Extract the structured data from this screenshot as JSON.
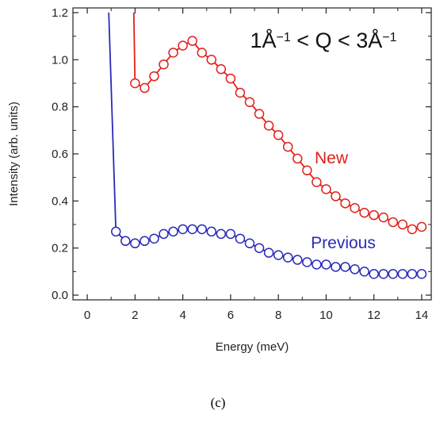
{
  "chart_data": {
    "type": "line",
    "xlabel": "Energy (meV)",
    "ylabel": "Intensity (arb. units)",
    "xlim": [
      -0.6,
      14.4
    ],
    "ylim": [
      -0.02,
      1.22
    ],
    "xticks": [
      0,
      2,
      4,
      6,
      8,
      10,
      12,
      14
    ],
    "yticks": [
      0.0,
      0.2,
      0.4,
      0.6,
      0.8,
      1.0,
      1.2
    ],
    "xtick_labels": [
      "0",
      "2",
      "4",
      "6",
      "8",
      "10",
      "12",
      "14"
    ],
    "ytick_labels": [
      "0.0",
      "0.2",
      "0.4",
      "0.6",
      "0.8",
      "1.0",
      "1.2"
    ],
    "annotation": "1Å⁻¹ < Q < 3Å⁻¹",
    "series": [
      {
        "name": "New",
        "color": "#e0201b",
        "line_only": [
          [
            1.95,
            1.2
          ],
          [
            2.0,
            0.9
          ]
        ],
        "x": [
          2.0,
          2.4,
          2.8,
          3.2,
          3.6,
          4.0,
          4.4,
          4.8,
          5.2,
          5.6,
          6.0,
          6.4,
          6.8,
          7.2,
          7.6,
          8.0,
          8.4,
          8.8,
          9.2,
          9.6,
          10.0,
          10.4,
          10.8,
          11.2,
          11.6,
          12.0,
          12.4,
          12.8,
          13.2,
          13.6,
          14.0
        ],
        "values": [
          0.9,
          0.88,
          0.93,
          0.98,
          1.03,
          1.06,
          1.08,
          1.03,
          1.0,
          0.96,
          0.92,
          0.86,
          0.82,
          0.77,
          0.72,
          0.68,
          0.63,
          0.58,
          0.53,
          0.48,
          0.45,
          0.42,
          0.39,
          0.37,
          0.35,
          0.34,
          0.33,
          0.31,
          0.3,
          0.28,
          0.29
        ]
      },
      {
        "name": "Previous",
        "color": "#2a2ab8",
        "line_only": [
          [
            0.9,
            1.2
          ],
          [
            1.2,
            0.27
          ]
        ],
        "x": [
          1.2,
          1.6,
          2.0,
          2.4,
          2.8,
          3.2,
          3.6,
          4.0,
          4.4,
          4.8,
          5.2,
          5.6,
          6.0,
          6.4,
          6.8,
          7.2,
          7.6,
          8.0,
          8.4,
          8.8,
          9.2,
          9.6,
          10.0,
          10.4,
          10.8,
          11.2,
          11.6,
          12.0,
          12.4,
          12.8,
          13.2,
          13.6,
          14.0
        ],
        "values": [
          0.27,
          0.23,
          0.22,
          0.23,
          0.24,
          0.26,
          0.27,
          0.28,
          0.28,
          0.28,
          0.27,
          0.26,
          0.26,
          0.24,
          0.22,
          0.2,
          0.18,
          0.17,
          0.16,
          0.15,
          0.14,
          0.13,
          0.13,
          0.12,
          0.12,
          0.11,
          0.1,
          0.09,
          0.09,
          0.09,
          0.09,
          0.09,
          0.09
        ]
      }
    ]
  },
  "panel_label": "(c)"
}
